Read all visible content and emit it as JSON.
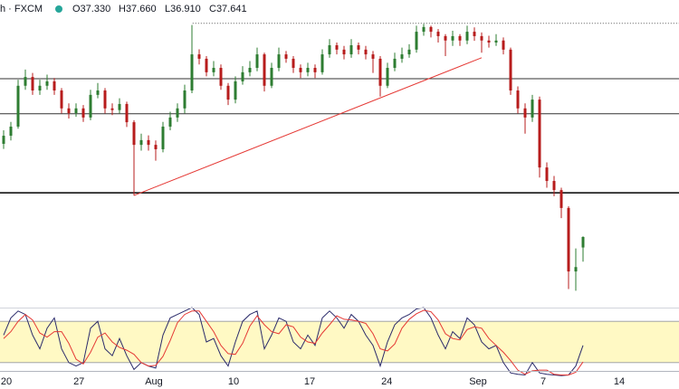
{
  "header": {
    "symbol": "h · FXCM",
    "open": "O37.330",
    "high": "H37.660",
    "low": "L36.910",
    "close": "C37.641"
  },
  "chart_data": [
    {
      "type": "candlestick",
      "up_color": "#2e7d32",
      "down_color": "#b71c1c",
      "xlim": [
        -0.5,
        93.25
      ],
      "ylim": [
        35.55,
        44.66
      ],
      "xticks": [
        {
          "value": 0.375,
          "label": "20"
        },
        {
          "value": 10.4,
          "label": "27"
        },
        {
          "value": 20.75,
          "label": "Aug"
        },
        {
          "value": 31.75,
          "label": "10"
        },
        {
          "value": 42.25,
          "label": "17"
        },
        {
          "value": 52.9,
          "label": "24"
        },
        {
          "value": 65.5,
          "label": "Sep"
        },
        {
          "value": 74.5,
          "label": "7"
        },
        {
          "value": 85,
          "label": "14"
        }
      ],
      "open": [
        40.4,
        40.64,
        40.91,
        42.12,
        42.38,
        41.98,
        42.12,
        42.25,
        41.98,
        41.45,
        41.31,
        41.45,
        41.18,
        41.85,
        41.98,
        41.45,
        41.4,
        41.58,
        41.04,
        40.37,
        40.51,
        40.37,
        40.24,
        40.91,
        41.18,
        41.45,
        41.98,
        43.05,
        42.92,
        42.52,
        42.65,
        42.12,
        41.71,
        42.25,
        42.52,
        42.65,
        43.05,
        42.12,
        42.65,
        43.05,
        42.92,
        42.65,
        42.52,
        42.65,
        42.52,
        43.05,
        43.32,
        43.19,
        43.05,
        43.32,
        43.19,
        43.05,
        42.92,
        42.12,
        42.65,
        42.92,
        43.05,
        43.19,
        43.72,
        43.86,
        43.72,
        43.59,
        43.46,
        43.59,
        43.46,
        43.72,
        43.59,
        43.46,
        43.4,
        43.46,
        43.19,
        41.98,
        41.45,
        41.18,
        41.71,
        39.7,
        39.3,
        39.03,
        38.5,
        36.62,
        37.33
      ],
      "high": [
        40.8,
        41.05,
        42.3,
        42.6,
        42.5,
        42.3,
        42.45,
        42.35,
        42.05,
        41.6,
        41.6,
        41.55,
        42.0,
        42.2,
        42.05,
        41.6,
        41.75,
        41.65,
        41.1,
        40.7,
        40.65,
        40.5,
        41.05,
        41.35,
        41.6,
        42.15,
        43.92,
        43.2,
        43.0,
        42.85,
        42.75,
        42.2,
        42.4,
        42.7,
        42.85,
        43.25,
        43.1,
        42.8,
        43.25,
        43.15,
        43.0,
        42.75,
        42.8,
        42.75,
        43.2,
        43.5,
        43.4,
        43.3,
        43.5,
        43.4,
        43.3,
        43.15,
        43.0,
        42.8,
        43.1,
        43.25,
        43.35,
        43.9,
        43.95,
        43.9,
        43.8,
        43.65,
        43.75,
        43.65,
        43.9,
        43.85,
        43.7,
        43.6,
        43.65,
        43.55,
        43.25,
        42.1,
        41.6,
        41.85,
        41.8,
        39.85,
        39.45,
        39.1,
        38.55,
        37.3,
        37.66
      ],
      "low": [
        40.25,
        40.5,
        40.85,
        42.0,
        41.85,
        41.85,
        42.0,
        41.85,
        41.3,
        41.15,
        41.2,
        41.05,
        41.1,
        41.75,
        41.3,
        41.25,
        41.3,
        40.9,
        38.87,
        40.2,
        40.2,
        39.9,
        40.15,
        40.8,
        41.05,
        41.3,
        41.9,
        42.75,
        42.4,
        42.4,
        42.0,
        41.55,
        41.6,
        42.15,
        42.4,
        42.55,
        41.95,
        42.05,
        42.55,
        42.8,
        42.5,
        42.35,
        42.4,
        42.35,
        42.45,
        42.95,
        43.05,
        42.9,
        42.95,
        43.05,
        42.9,
        42.5,
        41.8,
        42.05,
        42.55,
        42.8,
        42.95,
        43.1,
        43.6,
        43.55,
        43.4,
        43.0,
        43.3,
        43.3,
        43.35,
        43.45,
        43.1,
        43.25,
        43.3,
        43.05,
        41.85,
        41.3,
        40.7,
        41.05,
        39.4,
        39.1,
        38.85,
        38.2,
        36.1,
        36.05,
        36.91
      ],
      "close": [
        40.64,
        40.91,
        42.12,
        42.38,
        41.98,
        42.12,
        42.25,
        41.98,
        41.45,
        41.31,
        41.45,
        41.18,
        41.85,
        41.98,
        41.45,
        41.4,
        41.58,
        41.04,
        40.37,
        40.51,
        40.37,
        40.24,
        40.91,
        41.18,
        41.45,
        41.98,
        43.05,
        42.92,
        42.52,
        42.65,
        42.12,
        41.71,
        42.25,
        42.52,
        42.65,
        43.05,
        42.12,
        42.65,
        43.05,
        42.92,
        42.65,
        42.52,
        42.65,
        42.52,
        43.05,
        43.32,
        43.19,
        43.05,
        43.32,
        43.19,
        43.05,
        42.92,
        42.12,
        42.65,
        42.92,
        43.05,
        43.19,
        43.72,
        43.86,
        43.72,
        43.59,
        43.46,
        43.59,
        43.46,
        43.72,
        43.59,
        43.46,
        43.4,
        43.46,
        43.19,
        41.98,
        41.45,
        41.18,
        41.71,
        39.7,
        39.3,
        39.03,
        38.5,
        36.62,
        36.75,
        37.641
      ],
      "horizontal_lines": [
        {
          "value": 42.33,
          "color": "#333333",
          "width": 1
        },
        {
          "value": 41.29,
          "color": "#333333",
          "width": 1
        },
        {
          "value": 38.95,
          "color": "#000000",
          "width": 1.5
        }
      ],
      "dotted_line": {
        "start_x": 26.1,
        "value": 43.97,
        "color": "#555555"
      },
      "trendline": {
        "x": [
          18,
          66
        ],
        "y": [
          38.87,
          42.95
        ],
        "color": "#e53935"
      }
    },
    {
      "type": "stochastic",
      "xlim": [
        -0.5,
        93.25
      ],
      "ylim": [
        0,
        100
      ],
      "levels": [
        80,
        20
      ],
      "band_color": "#fff9c4",
      "series": [
        {
          "color": "#2b2b6b",
          "values": [
            60,
            85,
            95,
            90,
            60,
            40,
            70,
            85,
            40,
            20,
            15,
            20,
            70,
            80,
            40,
            30,
            55,
            30,
            10,
            20,
            15,
            12,
            60,
            85,
            90,
            95,
            100,
            90,
            50,
            55,
            30,
            15,
            50,
            80,
            90,
            95,
            40,
            60,
            85,
            80,
            50,
            40,
            60,
            45,
            85,
            95,
            85,
            70,
            90,
            80,
            60,
            45,
            15,
            50,
            75,
            85,
            90,
            98,
            100,
            85,
            60,
            40,
            65,
            55,
            85,
            75,
            50,
            40,
            45,
            20,
            5,
            3,
            2,
            20,
            5,
            3,
            2,
            1,
            2,
            15,
            45
          ]
        },
        {
          "color": "#e53935",
          "values": [
            55,
            65,
            80,
            90,
            82,
            63,
            57,
            65,
            65,
            48,
            25,
            18,
            35,
            57,
            63,
            50,
            42,
            38,
            32,
            20,
            15,
            16,
            29,
            52,
            78,
            90,
            95,
            95,
            80,
            65,
            45,
            33,
            32,
            48,
            73,
            88,
            75,
            65,
            62,
            75,
            72,
            57,
            50,
            48,
            63,
            75,
            88,
            83,
            82,
            80,
            77,
            62,
            40,
            37,
            47,
            70,
            83,
            91,
            96,
            94,
            82,
            62,
            55,
            53,
            68,
            72,
            70,
            55,
            45,
            35,
            23,
            9,
            3,
            8,
            9,
            9,
            3,
            2,
            2,
            6,
            21
          ]
        }
      ]
    }
  ]
}
